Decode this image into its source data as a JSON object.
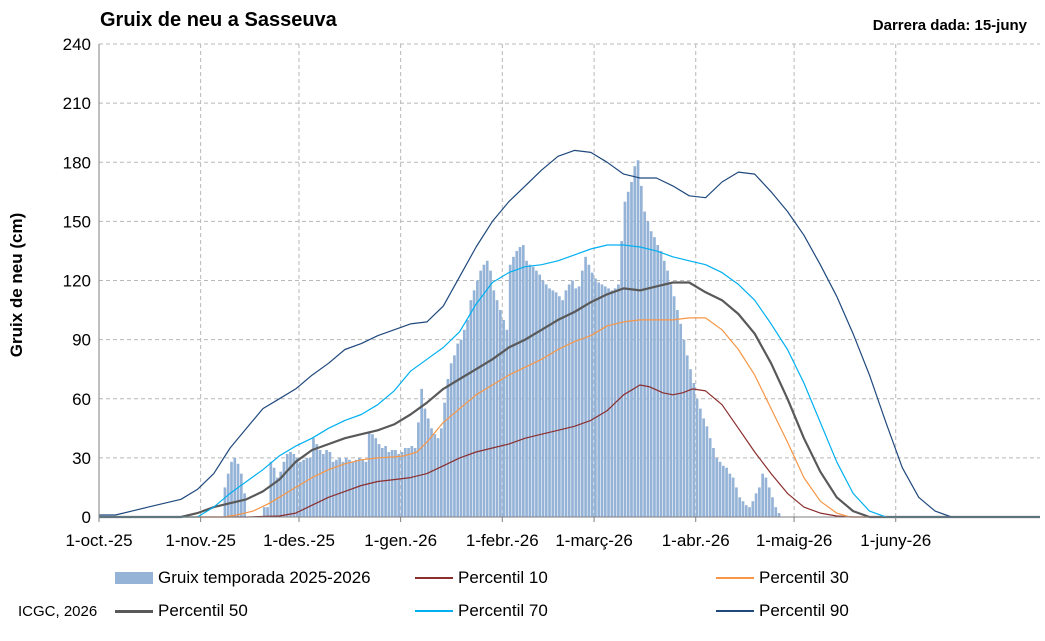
{
  "title": "Gruix de neu a Sasseuva",
  "last_date": "Darrera dada:  15-juny",
  "credit": "ICGC, 2026",
  "chart_data": {
    "type": "bar+line",
    "title": "Gruix de neu a Sasseuva",
    "ylabel": "Gruix de neu (cm)",
    "xlabel": "",
    "ylim": [
      0,
      240
    ],
    "yticks": [
      0,
      30,
      60,
      90,
      120,
      150,
      180,
      210,
      240
    ],
    "x_days_range": [
      0,
      287
    ],
    "x_tick_labels": [
      "1-oct.-25",
      "1-nov.-25",
      "1-des.-25",
      "1-gen.-26",
      "1-febr.-26",
      "1-març-26",
      "1-abr.-26",
      "1-maig-26",
      "1-juny-26"
    ],
    "x_tick_days": [
      0,
      31,
      61,
      92,
      123,
      151,
      182,
      212,
      243
    ],
    "grid": true,
    "bar_series": {
      "name": "Gruix temporada 2025-2026",
      "color": "#95b3d7",
      "start_day": 38,
      "values": [
        15,
        22,
        28,
        30,
        27,
        22,
        12,
        0,
        0,
        0,
        0,
        0,
        5,
        5,
        28,
        25,
        20,
        23,
        28,
        32,
        33,
        32,
        30,
        28,
        29,
        30,
        30,
        40,
        37,
        34,
        32,
        34,
        33,
        28,
        29,
        30,
        28,
        30,
        29,
        28,
        29,
        30,
        29,
        28,
        43,
        42,
        40,
        37,
        35,
        36,
        33,
        34,
        34,
        32,
        33,
        35,
        35,
        36,
        35,
        48,
        65,
        55,
        50,
        45,
        42,
        40,
        45,
        58,
        70,
        78,
        82,
        88,
        90,
        95,
        100,
        110,
        115,
        120,
        125,
        128,
        130,
        125,
        115,
        110,
        105,
        100,
        95,
        128,
        132,
        135,
        137,
        138,
        130,
        128,
        127,
        125,
        123,
        120,
        118,
        116,
        115,
        114,
        112,
        110,
        115,
        118,
        120,
        116,
        117,
        125,
        132,
        128,
        124,
        121,
        119,
        118,
        117,
        116,
        115,
        116,
        118,
        140,
        160,
        165,
        170,
        178,
        181,
        168,
        155,
        150,
        145,
        142,
        138,
        135,
        130,
        125,
        118,
        112,
        105,
        98,
        90,
        82,
        75,
        68,
        60,
        55,
        50,
        46,
        40,
        35,
        30,
        28,
        26,
        25,
        22,
        20,
        15,
        10,
        8,
        6,
        5,
        8,
        12,
        15,
        22,
        20,
        15,
        10,
        5,
        2
      ],
      "zero_after_day": 208
    },
    "line_series": [
      {
        "name": "Percentil 10",
        "color": "#8b2e2e",
        "points": [
          [
            0,
            0
          ],
          [
            45,
            0
          ],
          [
            55,
            0.5
          ],
          [
            60,
            2
          ],
          [
            65,
            6
          ],
          [
            70,
            10
          ],
          [
            75,
            13
          ],
          [
            80,
            16
          ],
          [
            85,
            18
          ],
          [
            90,
            19
          ],
          [
            95,
            20
          ],
          [
            100,
            22
          ],
          [
            105,
            26
          ],
          [
            110,
            30
          ],
          [
            115,
            33
          ],
          [
            120,
            35
          ],
          [
            125,
            37
          ],
          [
            130,
            40
          ],
          [
            135,
            42
          ],
          [
            140,
            44
          ],
          [
            145,
            46
          ],
          [
            150,
            49
          ],
          [
            155,
            54
          ],
          [
            160,
            62
          ],
          [
            165,
            67
          ],
          [
            168,
            66
          ],
          [
            172,
            63
          ],
          [
            175,
            62
          ],
          [
            178,
            63
          ],
          [
            181,
            65
          ],
          [
            185,
            64
          ],
          [
            190,
            57
          ],
          [
            195,
            45
          ],
          [
            200,
            33
          ],
          [
            205,
            22
          ],
          [
            210,
            12
          ],
          [
            215,
            5
          ],
          [
            220,
            2
          ],
          [
            225,
            0.5
          ],
          [
            230,
            0
          ],
          [
            287,
            0
          ]
        ]
      },
      {
        "name": "Percentil 30",
        "color": "#f79646",
        "points": [
          [
            0,
            0
          ],
          [
            38,
            0
          ],
          [
            42,
            1
          ],
          [
            47,
            3
          ],
          [
            52,
            7
          ],
          [
            55,
            10
          ],
          [
            60,
            15
          ],
          [
            65,
            20
          ],
          [
            70,
            24
          ],
          [
            75,
            27
          ],
          [
            80,
            29
          ],
          [
            85,
            30
          ],
          [
            90,
            30.5
          ],
          [
            93,
            31
          ],
          [
            97,
            33
          ],
          [
            100,
            38
          ],
          [
            105,
            48
          ],
          [
            110,
            55
          ],
          [
            115,
            62
          ],
          [
            120,
            67
          ],
          [
            125,
            72
          ],
          [
            130,
            76
          ],
          [
            135,
            80
          ],
          [
            140,
            85
          ],
          [
            145,
            89
          ],
          [
            150,
            92
          ],
          [
            155,
            97
          ],
          [
            160,
            99
          ],
          [
            165,
            100
          ],
          [
            170,
            100
          ],
          [
            175,
            100
          ],
          [
            180,
            101
          ],
          [
            185,
            101
          ],
          [
            190,
            95
          ],
          [
            195,
            85
          ],
          [
            200,
            72
          ],
          [
            205,
            55
          ],
          [
            210,
            38
          ],
          [
            215,
            20
          ],
          [
            220,
            8
          ],
          [
            225,
            2
          ],
          [
            229,
            0
          ],
          [
            287,
            0
          ]
        ]
      },
      {
        "name": "Percentil 50",
        "color": "#595959",
        "points": [
          [
            0,
            0
          ],
          [
            25,
            0
          ],
          [
            30,
            2
          ],
          [
            35,
            5
          ],
          [
            40,
            7
          ],
          [
            45,
            9
          ],
          [
            50,
            13
          ],
          [
            55,
            19
          ],
          [
            60,
            28
          ],
          [
            65,
            34
          ],
          [
            70,
            37
          ],
          [
            75,
            40
          ],
          [
            80,
            42
          ],
          [
            85,
            44
          ],
          [
            90,
            47
          ],
          [
            95,
            52
          ],
          [
            100,
            58
          ],
          [
            105,
            65
          ],
          [
            110,
            70
          ],
          [
            115,
            75
          ],
          [
            120,
            80
          ],
          [
            125,
            86
          ],
          [
            130,
            90
          ],
          [
            135,
            95
          ],
          [
            140,
            100
          ],
          [
            145,
            104
          ],
          [
            150,
            109
          ],
          [
            155,
            113
          ],
          [
            160,
            116
          ],
          [
            165,
            115
          ],
          [
            170,
            117
          ],
          [
            175,
            119
          ],
          [
            180,
            119
          ],
          [
            185,
            114
          ],
          [
            190,
            110
          ],
          [
            195,
            103
          ],
          [
            200,
            93
          ],
          [
            205,
            78
          ],
          [
            210,
            60
          ],
          [
            215,
            40
          ],
          [
            220,
            23
          ],
          [
            225,
            10
          ],
          [
            230,
            3
          ],
          [
            235,
            0
          ],
          [
            287,
            0
          ]
        ]
      },
      {
        "name": "Percentil 70",
        "color": "#00b0f0",
        "points": [
          [
            0,
            0
          ],
          [
            30,
            0
          ],
          [
            35,
            5
          ],
          [
            40,
            12
          ],
          [
            45,
            18
          ],
          [
            50,
            24
          ],
          [
            55,
            31
          ],
          [
            60,
            36
          ],
          [
            65,
            40
          ],
          [
            70,
            45
          ],
          [
            75,
            49
          ],
          [
            80,
            52
          ],
          [
            85,
            57
          ],
          [
            90,
            64
          ],
          [
            95,
            74
          ],
          [
            100,
            80
          ],
          [
            105,
            86
          ],
          [
            110,
            94
          ],
          [
            115,
            108
          ],
          [
            120,
            119
          ],
          [
            125,
            124
          ],
          [
            130,
            127
          ],
          [
            135,
            128
          ],
          [
            140,
            130
          ],
          [
            145,
            133
          ],
          [
            150,
            136
          ],
          [
            155,
            138
          ],
          [
            160,
            138
          ],
          [
            165,
            137
          ],
          [
            170,
            135
          ],
          [
            175,
            132
          ],
          [
            180,
            130
          ],
          [
            185,
            128
          ],
          [
            190,
            124
          ],
          [
            195,
            118
          ],
          [
            200,
            110
          ],
          [
            205,
            98
          ],
          [
            210,
            85
          ],
          [
            215,
            68
          ],
          [
            220,
            48
          ],
          [
            225,
            28
          ],
          [
            230,
            12
          ],
          [
            235,
            3
          ],
          [
            240,
            0
          ],
          [
            287,
            0
          ]
        ]
      },
      {
        "name": "Percentil 90",
        "color": "#1f497d",
        "points": [
          [
            0,
            1
          ],
          [
            5,
            1
          ],
          [
            10,
            3
          ],
          [
            15,
            5
          ],
          [
            20,
            7
          ],
          [
            25,
            9
          ],
          [
            30,
            14
          ],
          [
            35,
            22
          ],
          [
            40,
            35
          ],
          [
            45,
            45
          ],
          [
            50,
            55
          ],
          [
            55,
            60
          ],
          [
            60,
            65
          ],
          [
            65,
            72
          ],
          [
            70,
            78
          ],
          [
            75,
            85
          ],
          [
            80,
            88
          ],
          [
            85,
            92
          ],
          [
            90,
            95
          ],
          [
            95,
            98
          ],
          [
            100,
            99
          ],
          [
            105,
            107
          ],
          [
            110,
            122
          ],
          [
            115,
            137
          ],
          [
            120,
            150
          ],
          [
            125,
            160
          ],
          [
            130,
            168
          ],
          [
            135,
            176
          ],
          [
            140,
            183
          ],
          [
            145,
            186
          ],
          [
            150,
            185
          ],
          [
            155,
            180
          ],
          [
            160,
            174
          ],
          [
            165,
            172
          ],
          [
            170,
            172
          ],
          [
            175,
            168
          ],
          [
            180,
            163
          ],
          [
            185,
            162
          ],
          [
            190,
            170
          ],
          [
            195,
            175
          ],
          [
            200,
            174
          ],
          [
            205,
            165
          ],
          [
            210,
            155
          ],
          [
            215,
            143
          ],
          [
            220,
            128
          ],
          [
            225,
            112
          ],
          [
            230,
            93
          ],
          [
            235,
            72
          ],
          [
            240,
            48
          ],
          [
            245,
            25
          ],
          [
            250,
            10
          ],
          [
            255,
            3
          ],
          [
            260,
            0
          ],
          [
            287,
            0
          ]
        ]
      }
    ],
    "legend_position": "bottom"
  },
  "legend": [
    {
      "label": "Gruix temporada 2025-2026",
      "kind": "bar",
      "color": "#95b3d7"
    },
    {
      "label": "Percentil 10",
      "kind": "line",
      "color": "#8b2e2e"
    },
    {
      "label": "Percentil 30",
      "kind": "line",
      "color": "#f79646"
    },
    {
      "label": "Percentil 50",
      "kind": "line",
      "color": "#595959"
    },
    {
      "label": "Percentil 70",
      "kind": "line",
      "color": "#00b0f0"
    },
    {
      "label": "Percentil 90",
      "kind": "line",
      "color": "#1f497d"
    }
  ]
}
